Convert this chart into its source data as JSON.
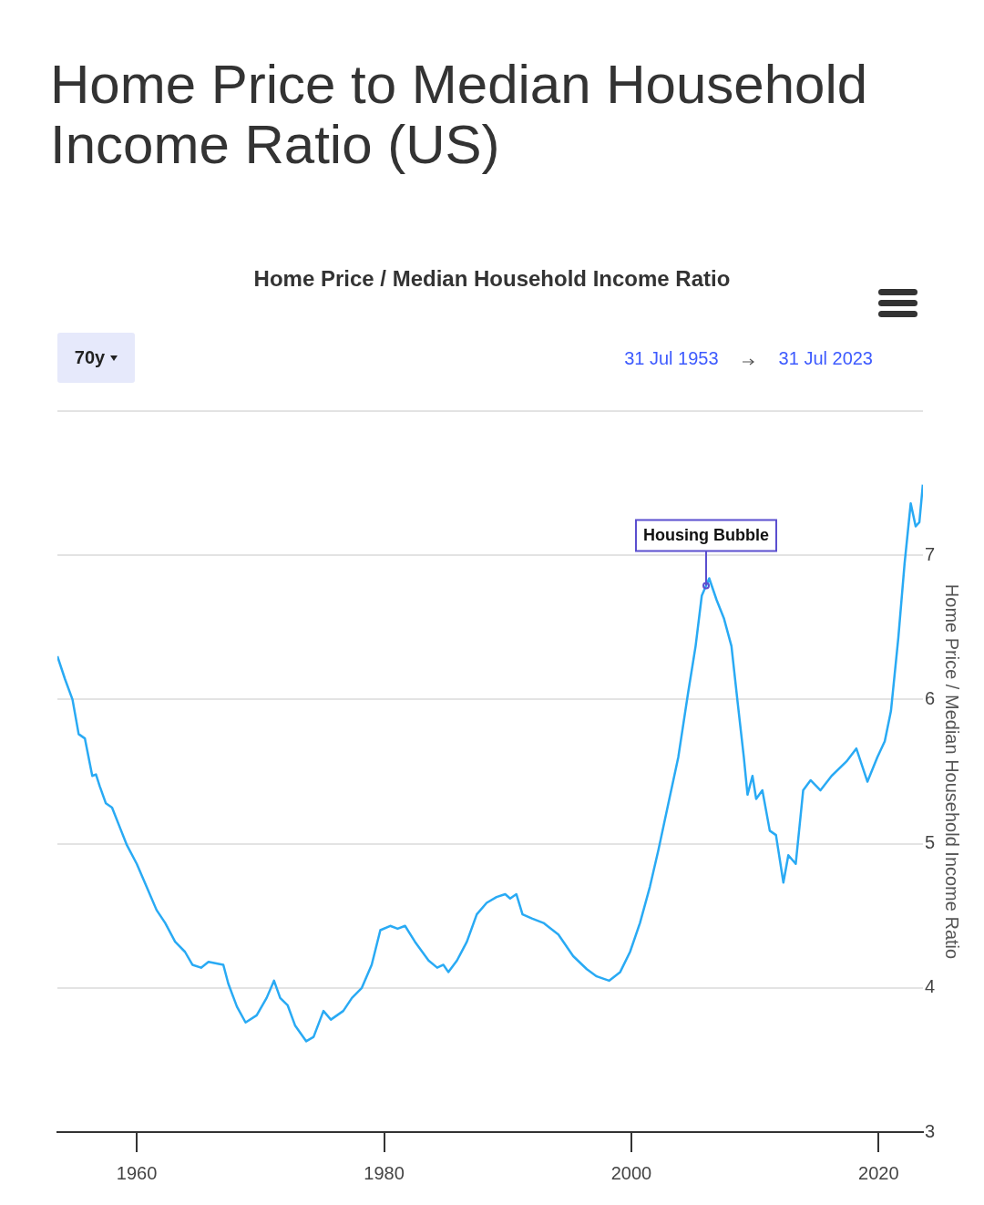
{
  "chart_data": {
    "type": "line",
    "title": "Home Price to Median Household Income Ratio (US)",
    "subtitle": "Home Price / Median Household Income Ratio",
    "ylabel": "Home Price / Median Household Income Ratio",
    "annotations": [
      "70y",
      "31 Jul 1953",
      "31 Jul 2023",
      {
        "text": "Housing Bubble",
        "x": 2006.05,
        "y": 6.79
      }
    ],
    "x": [
      1953.58,
      1954.2,
      1954.8,
      1955.3,
      1955.8,
      1956.4,
      1956.7,
      1957.0,
      1957.5,
      1958.0,
      1958.6,
      1959.2,
      1960.0,
      1960.8,
      1961.6,
      1962.3,
      1963.1,
      1963.9,
      1964.5,
      1965.2,
      1965.8,
      1967.0,
      1967.4,
      1968.1,
      1968.8,
      1969.7,
      1970.5,
      1971.1,
      1971.6,
      1972.2,
      1972.8,
      1973.7,
      1974.3,
      1975.1,
      1975.7,
      1976.7,
      1977.4,
      1978.2,
      1979.0,
      1979.7,
      1980.5,
      1981.1,
      1981.7,
      1982.5,
      1983.6,
      1984.3,
      1984.8,
      1985.2,
      1985.9,
      1986.7,
      1987.5,
      1988.3,
      1989.1,
      1989.8,
      1990.2,
      1990.7,
      1991.2,
      1992.0,
      1992.9,
      1994.1,
      1995.3,
      1996.4,
      1997.2,
      1998.2,
      1999.1,
      1999.9,
      2000.7,
      2001.5,
      2002.2,
      2003.0,
      2003.8,
      2004.6,
      2005.2,
      2005.7,
      2006.3,
      2006.9,
      2007.5,
      2008.1,
      2008.6,
      2009.1,
      2009.4,
      2009.8,
      2010.1,
      2010.6,
      2011.2,
      2011.7,
      2012.3,
      2012.7,
      2013.3,
      2013.9,
      2014.5,
      2015.3,
      2016.2,
      2017.4,
      2018.2,
      2019.1,
      2019.9,
      2020.5,
      2021.0,
      2021.6,
      2022.1,
      2022.6,
      2023.0,
      2023.3,
      2023.58
    ],
    "series": [
      {
        "color": "#29aaf4",
        "values": [
          6.3,
          6.14,
          6.0,
          5.76,
          5.73,
          5.47,
          5.48,
          5.4,
          5.28,
          5.25,
          5.12,
          4.99,
          4.86,
          4.7,
          4.54,
          4.45,
          4.32,
          4.25,
          4.16,
          4.14,
          4.18,
          4.16,
          4.03,
          3.87,
          3.76,
          3.81,
          3.93,
          4.05,
          3.93,
          3.88,
          3.74,
          3.63,
          3.66,
          3.84,
          3.78,
          3.84,
          3.93,
          4.0,
          4.16,
          4.4,
          4.43,
          4.41,
          4.43,
          4.32,
          4.19,
          4.14,
          4.16,
          4.11,
          4.19,
          4.32,
          4.51,
          4.59,
          4.63,
          4.65,
          4.62,
          4.65,
          4.51,
          4.48,
          4.45,
          4.37,
          4.22,
          4.13,
          4.08,
          4.05,
          4.11,
          4.25,
          4.45,
          4.7,
          4.96,
          5.28,
          5.6,
          6.05,
          6.37,
          6.72,
          6.84,
          6.69,
          6.56,
          6.37,
          5.98,
          5.6,
          5.34,
          5.47,
          5.31,
          5.37,
          5.09,
          5.06,
          4.73,
          4.92,
          4.86,
          5.37,
          5.44,
          5.37,
          5.47,
          5.57,
          5.66,
          5.43,
          5.6,
          5.71,
          5.92,
          6.43,
          6.94,
          7.36,
          7.2,
          7.23,
          7.49
        ]
      }
    ],
    "xlim": [
      1953.58,
      2023.58
    ],
    "xticks": [
      1960,
      1980,
      2000,
      2020
    ],
    "ylim": [
      3,
      8
    ],
    "yticks": [
      3,
      4,
      5,
      6,
      7,
      {
        "value": 8,
        "label": null
      }
    ],
    "grid": "y",
    "legend": false,
    "marker": "none",
    "line_style": "solid"
  }
}
